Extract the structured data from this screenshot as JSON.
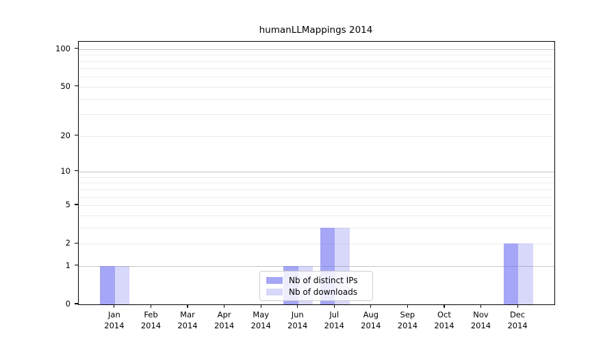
{
  "chart_data": {
    "type": "bar",
    "title": "humanLLMappings 2014",
    "categories": [
      "Jan",
      "Feb",
      "Mar",
      "Apr",
      "May",
      "Jun",
      "Jul",
      "Aug",
      "Sep",
      "Oct",
      "Nov",
      "Dec"
    ],
    "x_sublabel": "2014",
    "series": [
      {
        "name": "Nb of distinct IPs",
        "color": "rgba(112,112,240,0.62)",
        "values": [
          1,
          0,
          0,
          0,
          0,
          1,
          3,
          0,
          0,
          0,
          0,
          2
        ]
      },
      {
        "name": "Nb of downloads",
        "color": "rgba(112,112,240,0.27)",
        "values": [
          1,
          0,
          0,
          0,
          0,
          1,
          3,
          0,
          0,
          0,
          0,
          2
        ]
      }
    ],
    "y_axis": {
      "scale": "log1p",
      "ticks": [
        0,
        1,
        2,
        5,
        10,
        20,
        50,
        100
      ],
      "max": 100,
      "minor_gridlines": [
        2,
        3,
        4,
        5,
        6,
        7,
        8,
        9,
        20,
        30,
        40,
        50,
        60,
        70,
        80,
        90
      ],
      "decade_gridlines": [
        1,
        10,
        100
      ]
    },
    "legend": {
      "position": "lower center"
    },
    "grid": true,
    "colors": {
      "minor_grid": "#ececec",
      "decade_grid": "#c4c4c4",
      "frame": "#000000",
      "legend_border": "#cccccc"
    }
  }
}
